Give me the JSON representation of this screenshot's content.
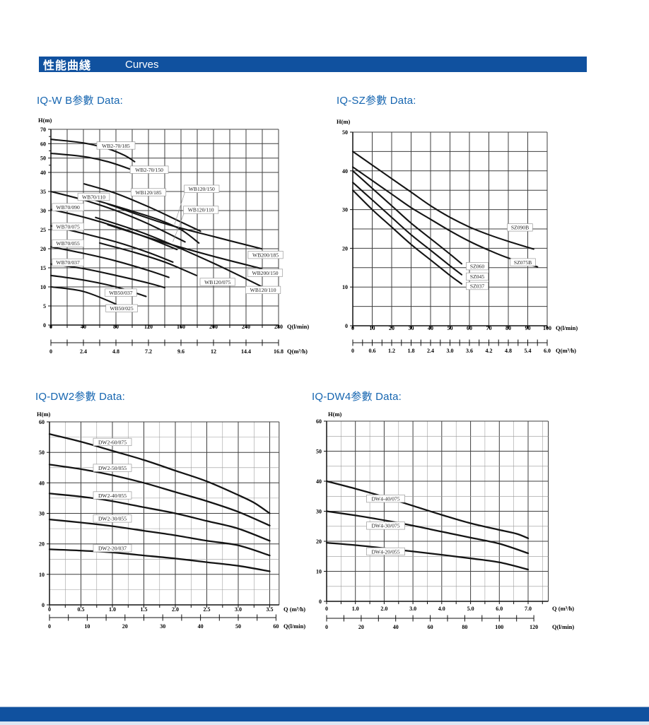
{
  "page": {
    "header": {
      "title_zh": "性能曲綫",
      "title_en": "Curves"
    },
    "colors": {
      "bar": "#10519f",
      "section_title": "#1565b0",
      "curve": "#141414",
      "grid_major": "#3f3f3f",
      "grid_minor": "#979797",
      "axis": "#111111",
      "label_box_border": "#9a9a9a"
    }
  },
  "chart_data": [
    {
      "id": "iq-wb",
      "type": "line",
      "title": "IQ-W B参數 Data:",
      "ylabel": "H(m)",
      "x_axis": {
        "unit": "Q(l/min)",
        "labeled_ticks": [
          0,
          40,
          80,
          120,
          160,
          200,
          240
        ],
        "end_tick": "280",
        "max": 280
      },
      "y_axis": {
        "ticks": [
          70,
          60,
          50,
          40,
          35,
          30,
          25,
          20,
          15,
          10,
          5,
          0
        ]
      },
      "ruler": {
        "unit": "Q(m³/h)",
        "labeled_ticks": [
          "0",
          "2.4",
          "4.8",
          "7.2",
          "9.6",
          "12",
          "14.4"
        ],
        "end_tick": "16.8",
        "max": 16.8
      },
      "series": [
        {
          "name": "WB2-70/185",
          "points": [
            [
              0,
              63
            ],
            [
              40,
              60.5
            ],
            [
              70,
              56.5
            ],
            [
              90,
              52
            ],
            [
              103,
              47.5
            ]
          ],
          "label": [
            80,
            58.7
          ]
        },
        {
          "name": "WB2-70/150",
          "points": [
            [
              0,
              53.3
            ],
            [
              40,
              51
            ],
            [
              70,
              47.5
            ],
            [
              99,
              42
            ]
          ],
          "label": [
            121,
            41.9
          ]
        },
        {
          "name": "WB120/185",
          "points": [
            [
              41,
              37
            ],
            [
              80,
              34.5
            ],
            [
              120,
              31
            ],
            [
              155,
              27.5
            ],
            [
              184,
              24.6
            ]
          ],
          "label": [
            120,
            34.8
          ]
        },
        {
          "name": "WB120/150",
          "points": [
            [
              50,
              33
            ],
            [
              90,
              30.5
            ],
            [
              130,
              27.8
            ],
            [
              160,
              25
            ],
            [
              182,
              21.5
            ]
          ],
          "label": [
            185.5,
            35.7
          ],
          "leader": [
            152,
            26.3
          ]
        },
        {
          "name": "WB120/110",
          "points": [
            [
              55,
              28.2
            ],
            [
              120,
              23.6
            ],
            [
              200,
              16.2
            ],
            [
              260,
              10
            ]
          ],
          "label": [
            184.5,
            30.2
          ],
          "leader": [
            150,
            21.8
          ],
          "label2": [
            261,
            9.2
          ]
        },
        {
          "name": "WB200/185",
          "points": [
            [
              70,
              31.7
            ],
            [
              140,
              26.6
            ],
            [
              200,
              23.2
            ],
            [
              259,
              20
            ]
          ],
          "label2": [
            264,
            18.4
          ]
        },
        {
          "name": "WB200/150",
          "points": [
            [
              70,
              26.3
            ],
            [
              140,
              21.6
            ],
            [
              200,
              18
            ],
            [
              259,
              14.8
            ]
          ],
          "label2": [
            263.5,
            13.7
          ]
        },
        {
          "name": "WB120/075",
          "points": [
            [
              60,
              21.5
            ],
            [
              100,
              19.2
            ],
            [
              140,
              16.5
            ],
            [
              179,
              13
            ]
          ],
          "label2": [
            205,
            11.3
          ]
        },
        {
          "name": "WB70/110",
          "points": [
            [
              0,
              35
            ],
            [
              40,
              32.8
            ],
            [
              80,
              30
            ],
            [
              120,
              26.5
            ],
            [
              165,
              21.8
            ]
          ],
          "label": [
            52.6,
            33.6
          ]
        },
        {
          "name": "WB70/090",
          "points": [
            [
              0,
              30.3
            ],
            [
              40,
              28.3
            ],
            [
              80,
              25.8
            ],
            [
              120,
              22.8
            ],
            [
              155,
              19.8
            ]
          ],
          "label": [
            21,
            30.9
          ]
        },
        {
          "name": "WB70/075",
          "points": [
            [
              0,
              26
            ],
            [
              40,
              24
            ],
            [
              80,
              21.8
            ],
            [
              120,
              19
            ],
            [
              150,
              16.5
            ]
          ],
          "label": [
            21,
            25.8
          ]
        },
        {
          "name": "WB70/055",
          "points": [
            [
              0,
              20.5
            ],
            [
              40,
              18.8
            ],
            [
              80,
              16.8
            ],
            [
              120,
              14.3
            ],
            [
              145,
              12.5
            ]
          ],
          "label": [
            21,
            21.4
          ]
        },
        {
          "name": "WB70/037",
          "points": [
            [
              0,
              16
            ],
            [
              40,
              14.8
            ],
            [
              80,
              13
            ],
            [
              120,
              11
            ],
            [
              140,
              9.8
            ]
          ],
          "label": [
            21,
            16.4
          ]
        },
        {
          "name": "WB50/037",
          "points": [
            [
              0,
              13
            ],
            [
              40,
              11.8
            ],
            [
              80,
              10
            ],
            [
              117,
              7.5
            ]
          ],
          "label": [
            86,
            8.5
          ]
        },
        {
          "name": "WB50/025",
          "points": [
            [
              0,
              10
            ],
            [
              40,
              8.8
            ],
            [
              80,
              5.5
            ]
          ],
          "label": [
            87,
            4.4
          ]
        }
      ]
    },
    {
      "id": "iq-sz",
      "type": "line",
      "title": "IQ-SZ参數 Data:",
      "ylabel": "H(m)",
      "x_axis": {
        "unit": "Q(l/min)",
        "labeled_ticks": [
          0,
          10,
          20,
          30,
          40,
          50,
          60,
          70,
          80,
          90
        ],
        "end_tick": "100",
        "max": 100
      },
      "y_axis": {
        "ticks": [
          50,
          40,
          30,
          20,
          10,
          0
        ]
      },
      "ruler": {
        "unit": "Q(m³/h)",
        "labeled_ticks": [
          "0",
          "0.6",
          "1.2",
          "1.8",
          "2.4",
          "3.0",
          "3.6",
          "4.2",
          "4.8",
          "5.4"
        ],
        "end_tick": "6.0",
        "max": 6.0
      },
      "series": [
        {
          "name": "SZ090B",
          "points": [
            [
              0,
              45
            ],
            [
              10,
              41.5
            ],
            [
              20,
              38
            ],
            [
              30,
              34.5
            ],
            [
              40,
              31
            ],
            [
              50,
              28
            ],
            [
              60,
              25.5
            ],
            [
              70,
              23.5
            ],
            [
              80,
              21.8
            ],
            [
              93,
              19.8
            ]
          ],
          "label": [
            86,
            25.4
          ]
        },
        {
          "name": "SZ075B",
          "points": [
            [
              0,
              41
            ],
            [
              10,
              37.5
            ],
            [
              20,
              34
            ],
            [
              30,
              30.5
            ],
            [
              40,
              27.5
            ],
            [
              50,
              24.5
            ],
            [
              60,
              21.8
            ],
            [
              70,
              19.5
            ],
            [
              80,
              17.5
            ],
            [
              95,
              15.2
            ]
          ],
          "label": [
            87.5,
            16.4
          ]
        },
        {
          "name": "SZ060",
          "points": [
            [
              0,
              40
            ],
            [
              10,
              35.5
            ],
            [
              20,
              31
            ],
            [
              30,
              26.5
            ],
            [
              40,
              22.5
            ],
            [
              50,
              18.5
            ],
            [
              56,
              16
            ]
          ],
          "label": [
            64,
            15.4
          ]
        },
        {
          "name": "SZ045",
          "points": [
            [
              0,
              37
            ],
            [
              10,
              32.5
            ],
            [
              20,
              28
            ],
            [
              30,
              23.5
            ],
            [
              40,
              19.5
            ],
            [
              50,
              15.5
            ],
            [
              56,
              13.2
            ]
          ],
          "label": [
            64,
            12.7
          ]
        },
        {
          "name": "SZ037",
          "points": [
            [
              0,
              35
            ],
            [
              10,
              30
            ],
            [
              20,
              25.5
            ],
            [
              30,
              21
            ],
            [
              40,
              17
            ],
            [
              50,
              13
            ],
            [
              56,
              10.8
            ]
          ],
          "label": [
            64,
            10.3
          ]
        }
      ]
    },
    {
      "id": "iq-dw2",
      "type": "line",
      "title": "IQ-DW2参數 Data:",
      "ylabel": "H(m)",
      "x_axis": {
        "unit": "Q (m³/h)",
        "labeled_ticks": [
          "0",
          "0.5",
          "1.0",
          "1.5",
          "2.0",
          "2.5",
          "3.0",
          "3.5"
        ],
        "max": 3.5
      },
      "y_axis": {
        "ticks": [
          60,
          50,
          40,
          30,
          20,
          10,
          0
        ]
      },
      "ruler": {
        "unit": "Q(l/min)",
        "labeled_ticks": [
          "0",
          "10",
          "20",
          "30",
          "40",
          "50",
          "60"
        ],
        "max": 60
      },
      "series": [
        {
          "name": "DW2-60/075",
          "points": [
            [
              0,
              56
            ],
            [
              0.5,
              53.5
            ],
            [
              1,
              50.5
            ],
            [
              1.5,
              47.5
            ],
            [
              2,
              44
            ],
            [
              2.5,
              40.5
            ],
            [
              3,
              36
            ],
            [
              3.25,
              33.5
            ],
            [
              3.5,
              30
            ]
          ],
          "label": [
            1.0,
            53.4
          ]
        },
        {
          "name": "DW2-50/055",
          "points": [
            [
              0,
              46
            ],
            [
              0.5,
              44.5
            ],
            [
              1,
              42.5
            ],
            [
              1.5,
              40
            ],
            [
              2,
              37
            ],
            [
              2.5,
              34
            ],
            [
              3,
              30.5
            ],
            [
              3.5,
              26
            ]
          ],
          "label": [
            1.0,
            44.9
          ]
        },
        {
          "name": "DW2-40/055",
          "points": [
            [
              0,
              36.5
            ],
            [
              0.5,
              35.5
            ],
            [
              1,
              34
            ],
            [
              1.5,
              32
            ],
            [
              2,
              30
            ],
            [
              2.5,
              27.5
            ],
            [
              3,
              25
            ],
            [
              3.5,
              21
            ]
          ],
          "label": [
            1.0,
            35.9
          ]
        },
        {
          "name": "DW2-30/055",
          "points": [
            [
              0,
              28
            ],
            [
              0.5,
              27
            ],
            [
              1,
              25.8
            ],
            [
              1.5,
              24.3
            ],
            [
              2,
              22.8
            ],
            [
              2.5,
              21
            ],
            [
              3,
              19.5
            ],
            [
              3.5,
              16.2
            ]
          ],
          "label": [
            1.0,
            28.3
          ]
        },
        {
          "name": "DW2-20/037",
          "points": [
            [
              0,
              18.2
            ],
            [
              0.5,
              17.8
            ],
            [
              1,
              17.2
            ],
            [
              1.5,
              16.2
            ],
            [
              2,
              15.2
            ],
            [
              2.5,
              14
            ],
            [
              3,
              12.8
            ],
            [
              3.5,
              11
            ]
          ],
          "label": [
            1.0,
            18.6
          ]
        }
      ]
    },
    {
      "id": "iq-dw4",
      "type": "line",
      "title": "IQ-DW4参數 Data:",
      "ylabel": "H(m)",
      "x_axis": {
        "unit": "Q (m³/h)",
        "labeled_ticks": [
          "0",
          "1.0",
          "2.0",
          "3.0",
          "4.0",
          "5.0",
          "6.0",
          "7.0"
        ],
        "max": 7.0
      },
      "y_axis": {
        "ticks": [
          60,
          50,
          40,
          30,
          20,
          10,
          0
        ]
      },
      "ruler": {
        "unit": "Q(l/min)",
        "labeled_ticks": [
          "0",
          "20",
          "40",
          "60",
          "80",
          "100",
          "120"
        ],
        "max": 120
      },
      "series": [
        {
          "name": "DW4-40/075",
          "points": [
            [
              0,
              40
            ],
            [
              1,
              37.5
            ],
            [
              2,
              34.8
            ],
            [
              3,
              31.8
            ],
            [
              4,
              28.8
            ],
            [
              5,
              26
            ],
            [
              6,
              23.8
            ],
            [
              6.6,
              22.5
            ],
            [
              7,
              21
            ]
          ],
          "label": [
            2.05,
            34.2
          ]
        },
        {
          "name": "DW4-30/075",
          "points": [
            [
              0,
              30
            ],
            [
              1,
              28.6
            ],
            [
              2,
              27
            ],
            [
              3,
              25.2
            ],
            [
              4,
              23.2
            ],
            [
              5,
              21.2
            ],
            [
              6,
              19.2
            ],
            [
              7,
              16
            ]
          ],
          "label": [
            2.05,
            25.2
          ]
        },
        {
          "name": "DW4-20/055",
          "points": [
            [
              0,
              19.5
            ],
            [
              1,
              18.7
            ],
            [
              2,
              17.7
            ],
            [
              3,
              16.6
            ],
            [
              4,
              15.5
            ],
            [
              5,
              14.3
            ],
            [
              6,
              13
            ],
            [
              7,
              10.6
            ]
          ],
          "label": [
            2.05,
            16.6
          ]
        }
      ]
    }
  ]
}
